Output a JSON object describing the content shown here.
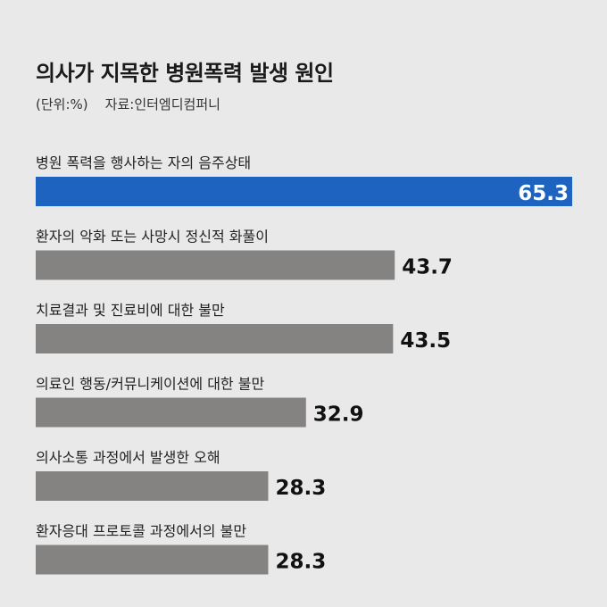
{
  "header": {
    "title": "의사가 지목한 병원폭력 발생 원인",
    "subtitle": "(단위:%)    자료:인터엠디컴퍼니"
  },
  "colors": {
    "highlight": "#1e63c0",
    "bar": "#858282",
    "value_text": "#111111",
    "highlight_value_text": "#ffffff",
    "background": "#e9e9e9"
  },
  "chart_data": {
    "type": "bar",
    "orientation": "horizontal",
    "title": "의사가 지목한 병원폭력 발생 원인",
    "unit": "(단위:%)",
    "source": "자료:인터엠디컴퍼니",
    "categories": [
      "병원 폭력을 행사하는 자의 음주상태",
      "환자의 악화 또는 사망시 정신적 화풀이",
      "치료결과 및 진료비에 대한 불만",
      "의료인 행동/커뮤니케이션에 대한 불만",
      "의사소통 과정에서 발생한 오해",
      "환자응대 프로토콜 과정에서의 불만"
    ],
    "values": [
      65.3,
      43.7,
      43.5,
      32.9,
      28.3,
      28.3
    ],
    "value_labels": [
      "65.3",
      "43.7",
      "43.5",
      "32.9",
      "28.3",
      "28.3"
    ],
    "highlight_index": 0,
    "xlim": [
      0,
      65.3
    ],
    "grid": false,
    "legend": "none"
  }
}
